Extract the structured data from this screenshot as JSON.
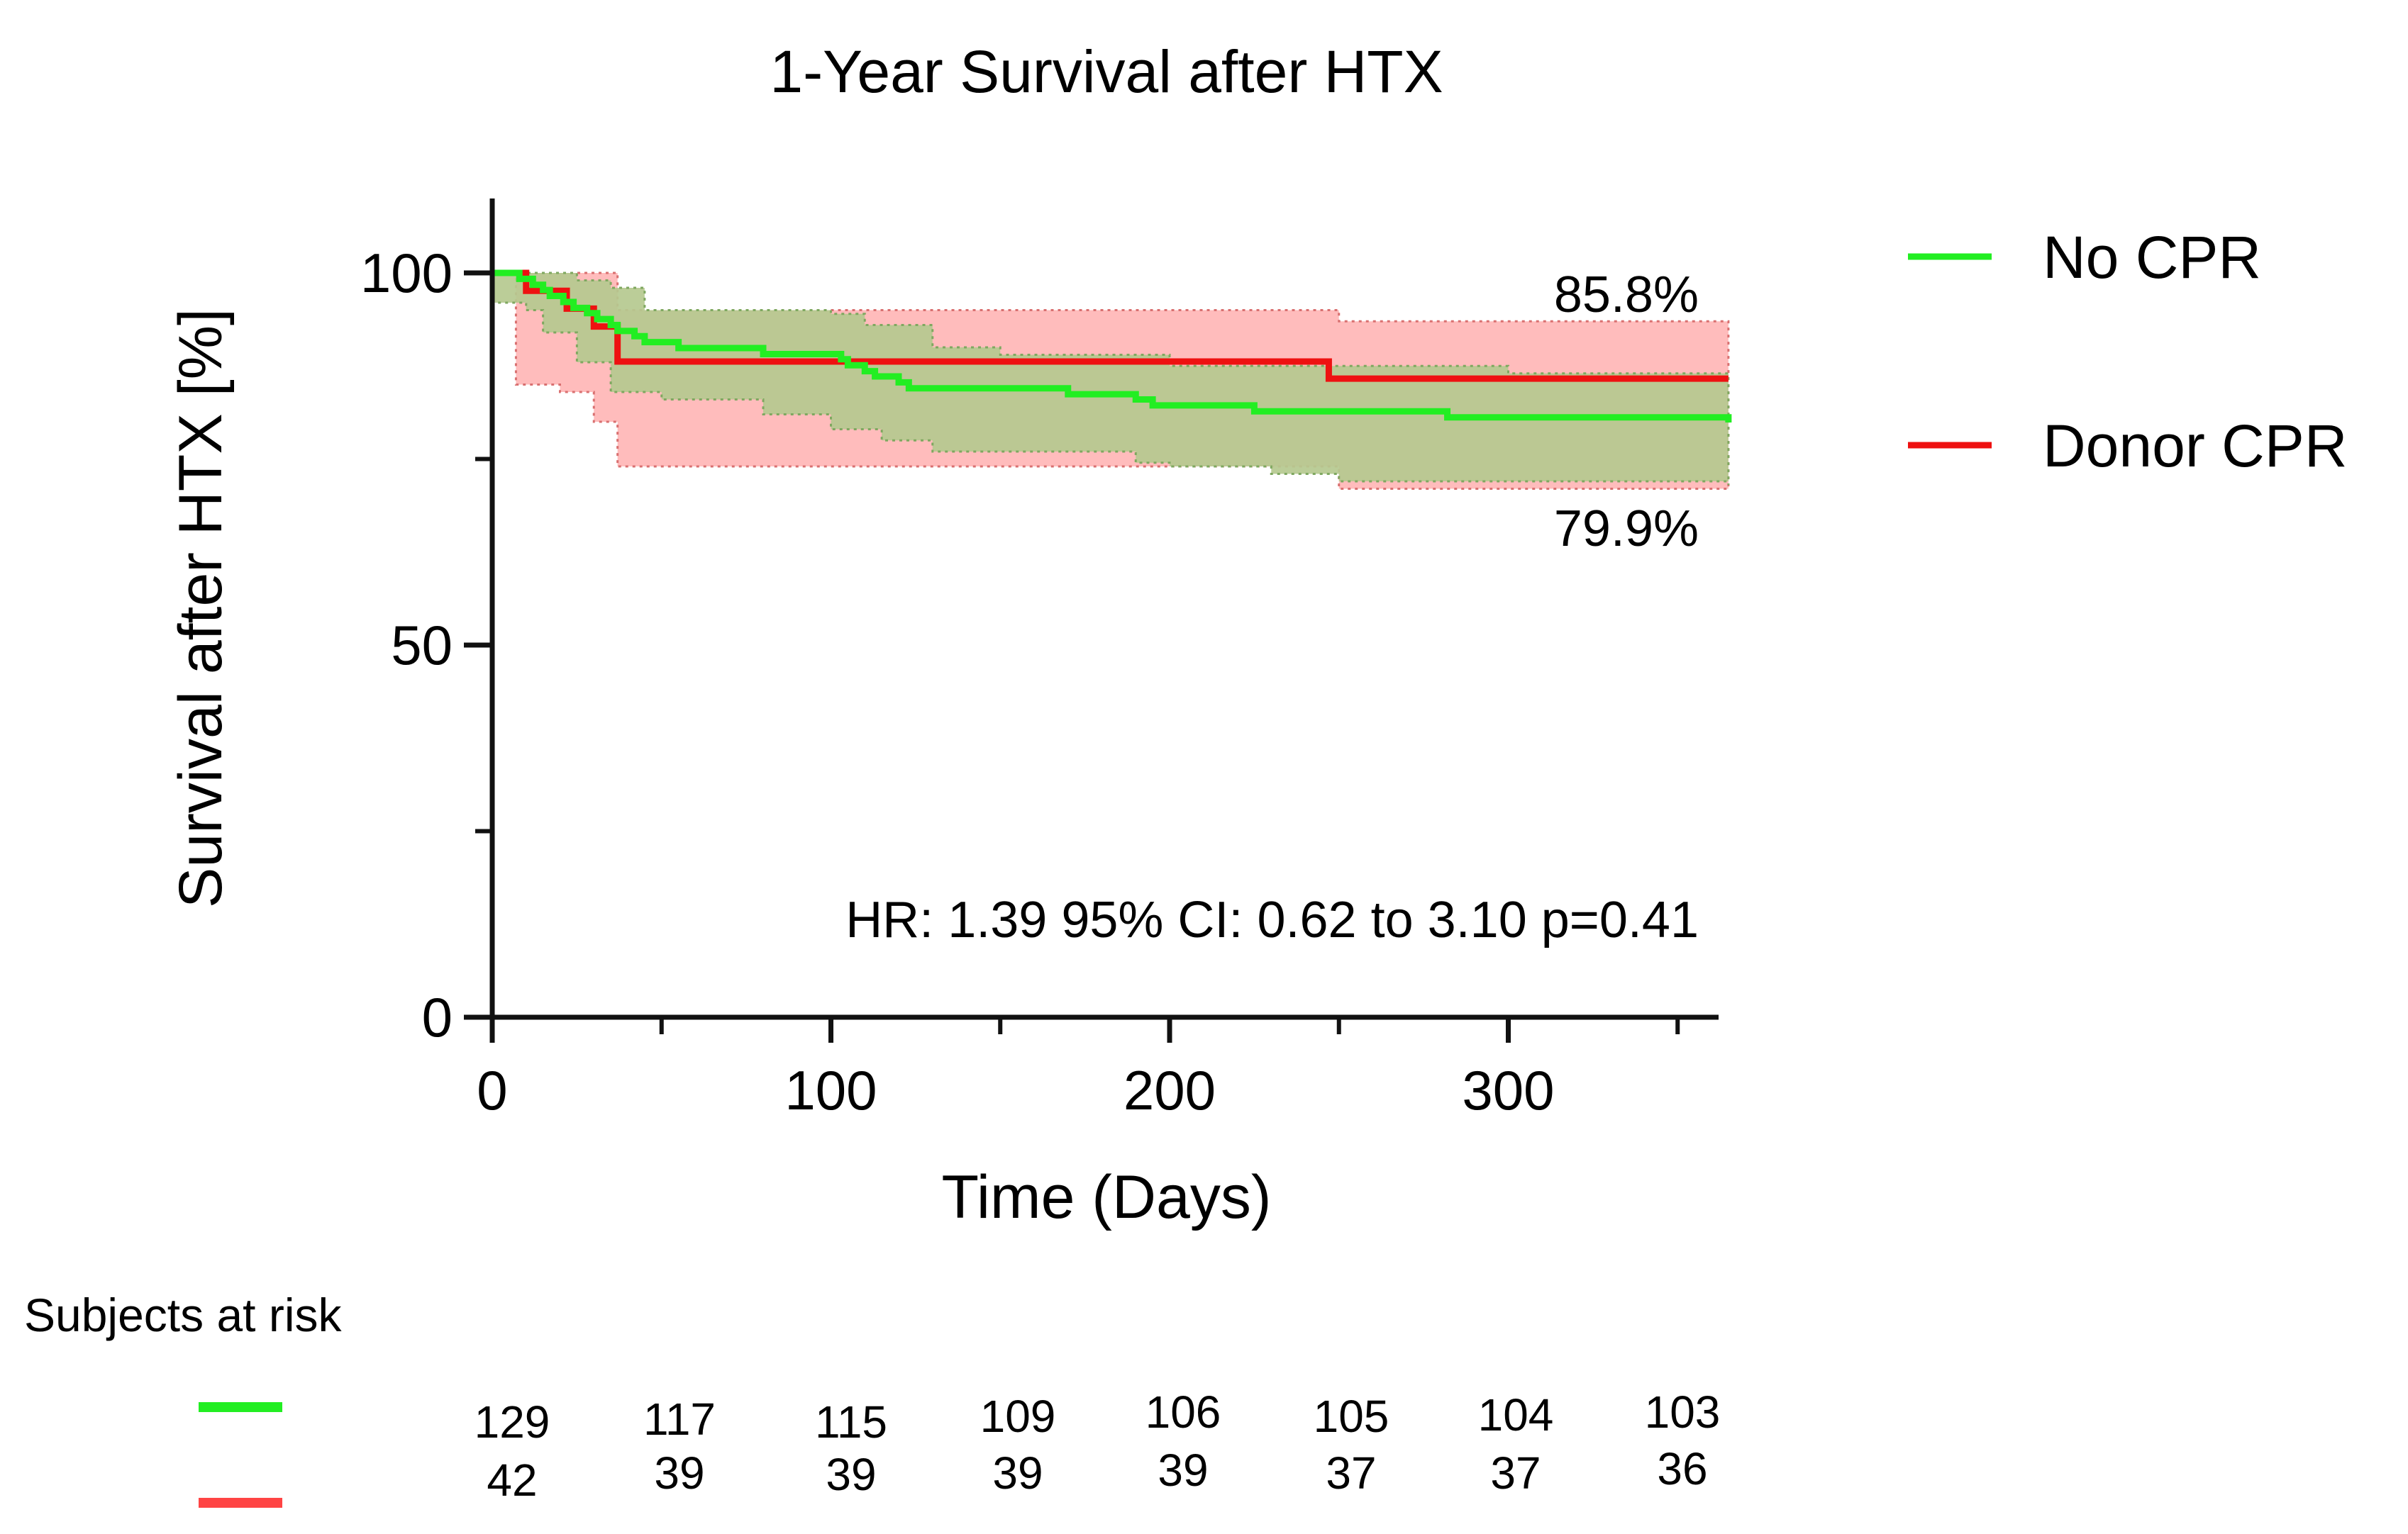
{
  "chart_data": {
    "type": "line",
    "subtype": "kaplan-meier",
    "title": "1-Year Survival after HTX",
    "xlabel": "Time (Days)",
    "ylabel": "Survival after HTX [%]",
    "xlim": [
      0,
      365
    ],
    "ylim": [
      0,
      110
    ],
    "x_ticks": [
      0,
      100,
      200,
      300
    ],
    "x_minor_ticks": [
      50,
      150,
      250,
      350
    ],
    "y_ticks": [
      0,
      50,
      100
    ],
    "y_minor_ticks": [
      25,
      75
    ],
    "series": [
      {
        "name": "No CPR",
        "color": "#22ee22",
        "ci_fill": "#b5c98f",
        "steps": [
          [
            0,
            100
          ],
          [
            8,
            99.2
          ],
          [
            12,
            98.4
          ],
          [
            15,
            97.7
          ],
          [
            17,
            96.9
          ],
          [
            21,
            96.1
          ],
          [
            24,
            95.3
          ],
          [
            28,
            94.6
          ],
          [
            31,
            93.8
          ],
          [
            35,
            93
          ],
          [
            37,
            92.2
          ],
          [
            42,
            91.5
          ],
          [
            45,
            90.7
          ],
          [
            55,
            89.9
          ],
          [
            80,
            89.1
          ],
          [
            103,
            88.4
          ],
          [
            105,
            87.6
          ],
          [
            110,
            86.8
          ],
          [
            113,
            86.1
          ],
          [
            120,
            85.3
          ],
          [
            123,
            84.5
          ],
          [
            170,
            83.7
          ],
          [
            190,
            83
          ],
          [
            195,
            82.2
          ],
          [
            225,
            81.4
          ],
          [
            282,
            80.6
          ],
          [
            365,
            79.9
          ]
        ],
        "ci_upper": [
          [
            0,
            100
          ],
          [
            15,
            100
          ],
          [
            25,
            99
          ],
          [
            35,
            98
          ],
          [
            45,
            95
          ],
          [
            100,
            94.5
          ],
          [
            110,
            93
          ],
          [
            130,
            90
          ],
          [
            150,
            89
          ],
          [
            200,
            87.5
          ],
          [
            300,
            86.5
          ],
          [
            365,
            86
          ]
        ],
        "ci_lower": [
          [
            0,
            96
          ],
          [
            10,
            95
          ],
          [
            15,
            92
          ],
          [
            25,
            88
          ],
          [
            35,
            84
          ],
          [
            50,
            83
          ],
          [
            80,
            81
          ],
          [
            100,
            79
          ],
          [
            115,
            77.5
          ],
          [
            130,
            76
          ],
          [
            190,
            74.5
          ],
          [
            200,
            74
          ],
          [
            230,
            73
          ],
          [
            250,
            72
          ],
          [
            300,
            72
          ],
          [
            365,
            71.5
          ]
        ],
        "end_label": "79.9%"
      },
      {
        "name": "Donor CPR",
        "color": "#ee1111",
        "ci_fill": "#ffbcbc",
        "steps": [
          [
            0,
            100
          ],
          [
            10,
            97.6
          ],
          [
            22,
            95.2
          ],
          [
            30,
            92.8
          ],
          [
            37,
            88.1
          ],
          [
            247,
            85.8
          ],
          [
            365,
            85.8
          ]
        ],
        "ci_upper": [
          [
            0,
            100
          ],
          [
            30,
            100
          ],
          [
            37,
            95
          ],
          [
            247,
            95
          ],
          [
            250,
            93.5
          ],
          [
            365,
            93.5
          ]
        ],
        "ci_lower": [
          [
            0,
            100
          ],
          [
            7,
            85
          ],
          [
            20,
            84
          ],
          [
            30,
            80
          ],
          [
            37,
            74
          ],
          [
            247,
            74
          ],
          [
            250,
            71
          ],
          [
            365,
            71
          ]
        ],
        "end_label": "85.8%"
      }
    ],
    "annotation": "HR: 1.39 95% CI: 0.62 to 3.10 p=0.41",
    "legend_position": "right"
  },
  "risk_table": {
    "title": "Subjects at risk",
    "rows": [
      {
        "name": "No CPR",
        "color": "#22ee22",
        "values": [
          "129",
          "117",
          "115",
          "109",
          "106",
          "105",
          "104",
          "103"
        ]
      },
      {
        "name": "Donor CPR",
        "color": "#ff4444",
        "values": [
          "42",
          "39",
          "39",
          "39",
          "39",
          "37",
          "37",
          "36"
        ]
      }
    ]
  }
}
